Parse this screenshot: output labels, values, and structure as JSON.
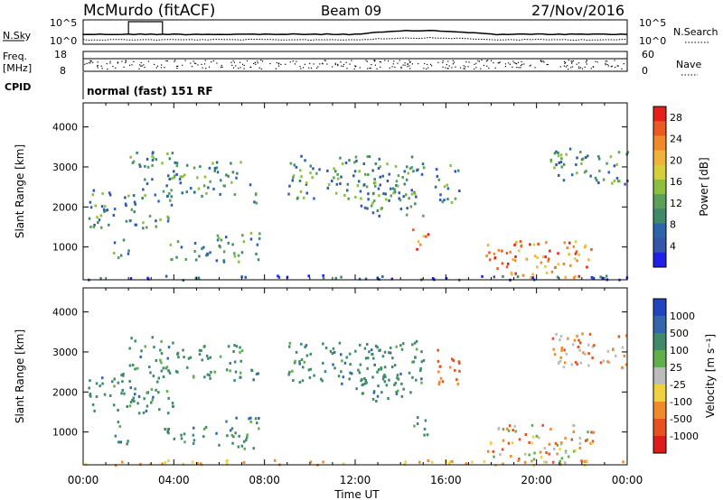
{
  "header": {
    "station": "McMurdo (fitACF)",
    "beam": "Beam 09",
    "date": "27/Nov/2016"
  },
  "panels": {
    "nsky": {
      "left_label": "N.Sky",
      "left_ticks": [
        "10^5",
        "10^0"
      ],
      "right_label": "N.Search",
      "right_ticks": [
        "10^5",
        "10^0"
      ]
    },
    "freq": {
      "left_label_1": "Freq.",
      "left_label_2": "[MHz]",
      "left_ticks": [
        "18",
        "8"
      ],
      "right_label": "Nave",
      "right_ticks": [
        "60",
        "0"
      ]
    },
    "cpid": {
      "left_label": "CPID",
      "text": "normal (fast) 151 RF"
    }
  },
  "chart_data": [
    {
      "type": "heatmap",
      "name": "power",
      "ylabel": "Slant Range [km]",
      "yticks": [
        "1000",
        "2000",
        "3000",
        "4000"
      ],
      "ylim": [
        180,
        4600
      ],
      "xlabel": "Time UT",
      "xticks": [
        "00:00",
        "04:00",
        "08:00",
        "12:00",
        "16:00",
        "20:00",
        "00:00"
      ],
      "colorbar": {
        "label": "Power [dB]",
        "ticks": [
          "4",
          "8",
          "12",
          "16",
          "20",
          "24",
          "28"
        ],
        "range": [
          0,
          30
        ],
        "colors": [
          "#1f1fe6",
          "#3355aa",
          "#2a66a8",
          "#3f8a68",
          "#5aa05a",
          "#8cbf3e",
          "#d6cf3c",
          "#f0b23a",
          "#f0892b",
          "#ea5a22",
          "#e5201b"
        ]
      }
    },
    {
      "type": "heatmap",
      "name": "velocity",
      "ylabel": "Slant Range [km]",
      "yticks": [
        "1000",
        "2000",
        "3000",
        "4000"
      ],
      "ylim": [
        180,
        4600
      ],
      "xlabel": "Time UT",
      "xticks": [
        "00:00",
        "04:00",
        "08:00",
        "12:00",
        "16:00",
        "20:00",
        "00:00"
      ],
      "colorbar": {
        "label": "Velocity [m s⁻¹]",
        "ticks": [
          "1000",
          "500",
          "100",
          "25",
          "-25",
          "-100",
          "-500",
          "-1000"
        ],
        "colors": [
          "#2244c0",
          "#3366aa",
          "#3f8a68",
          "#5fb04a",
          "#bcbcbc",
          "#f0d040",
          "#f08a2a",
          "#e85020",
          "#e01a1a"
        ]
      }
    }
  ]
}
